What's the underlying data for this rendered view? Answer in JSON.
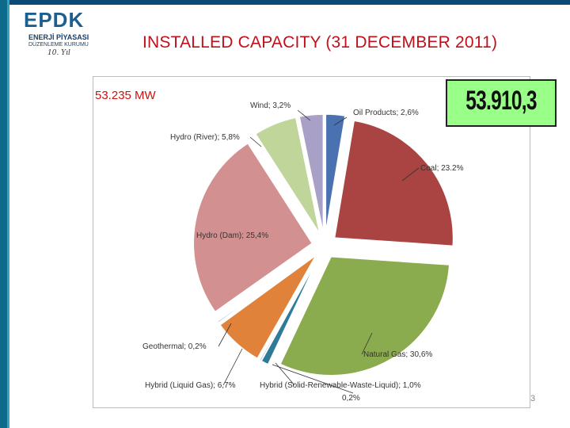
{
  "logo": {
    "mark": "EPDK",
    "line1": "ENERJİ PİYASASI",
    "line2": "DÜZENLEME KURUMU",
    "signature": "10. Yıl"
  },
  "title": "INSTALLED CAPACITY (31 DECEMBER 2011)",
  "capacity_label": "53.235 MW",
  "total_box": "53.910,3",
  "page_number": "3",
  "colors": {
    "title": "#c0101b",
    "total_box_bg": "#99ff88"
  },
  "chart_data": {
    "type": "pie",
    "title": "",
    "slices": [
      {
        "label": "Oil Products; 2,6%",
        "value": 2.6,
        "color": "#4a72b0"
      },
      {
        "label": "Coal; 23.2%",
        "value": 23.2,
        "color": "#a94442"
      },
      {
        "label": "Natural Gas; 30,6%",
        "value": 30.6,
        "color": "#8bab4f"
      },
      {
        "label": "Hybrid (Solid-Renewable-Waste-Liquid); 1,0%",
        "value": 1.0,
        "color": "#2f7a98"
      },
      {
        "label": "0,2%",
        "value": 0.2,
        "color": "#5a8fc4"
      },
      {
        "label": "Hybrid (Liquid Gas); 6,7%",
        "value": 6.7,
        "color": "#e0823a"
      },
      {
        "label": "Geothermal; 0,2%",
        "value": 0.2,
        "color": "#6e8fc0"
      },
      {
        "label": "Hydro (Dam); 25,4%",
        "value": 25.4,
        "color": "#d39090"
      },
      {
        "label": "Hydro (River); 5,8%",
        "value": 5.8,
        "color": "#bfd59a"
      },
      {
        "label": "Wind; 3,2%",
        "value": 3.2,
        "color": "#a9a0c8"
      }
    ]
  }
}
